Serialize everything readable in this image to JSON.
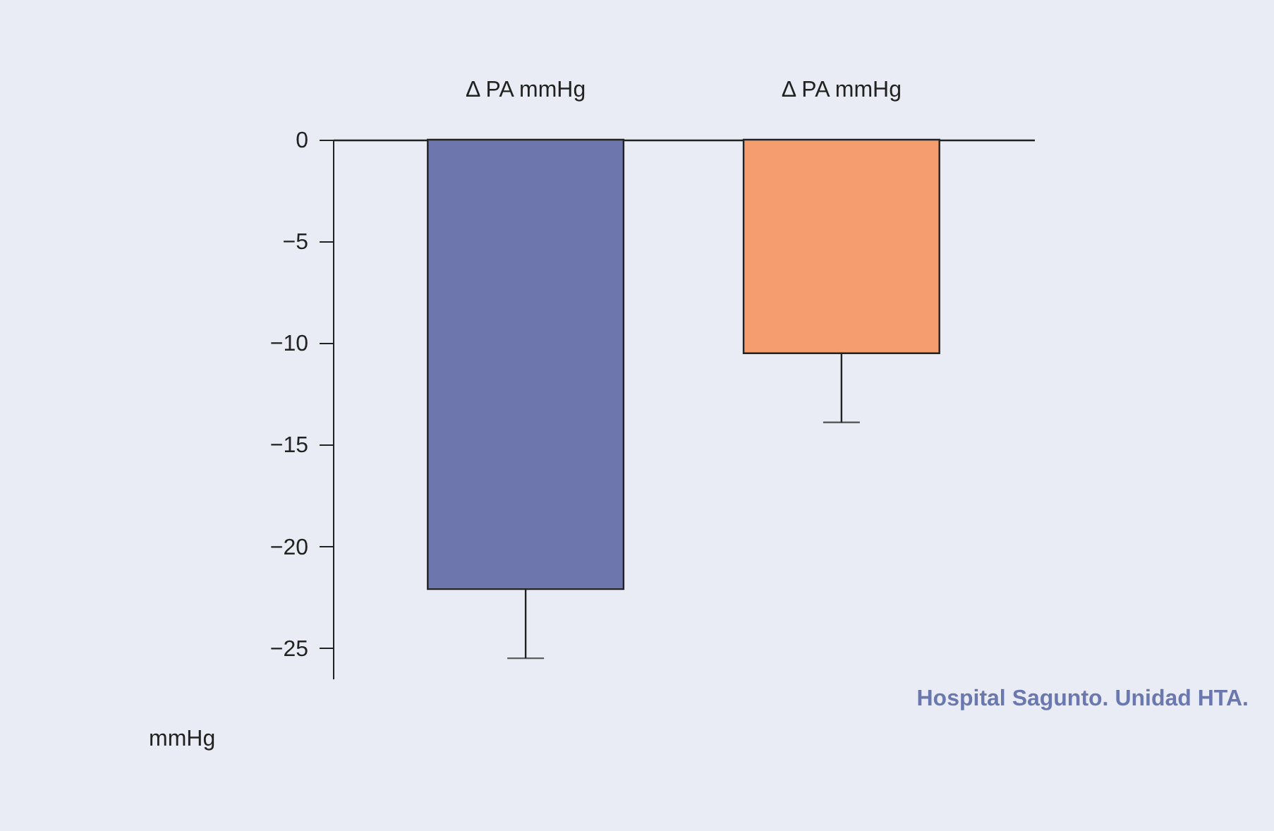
{
  "chart_data": {
    "type": "bar",
    "categories": [
      "Δ PA mmHg",
      "Δ PA mmHg"
    ],
    "values": [
      -22.1,
      -10.5
    ],
    "colors": [
      "#6d77ad",
      "#f59d6e"
    ],
    "errors": [
      3.4,
      3.4
    ],
    "ylim": [
      -26.5,
      0
    ],
    "yticks": [
      0,
      -5,
      -10,
      -15,
      -20,
      -25
    ],
    "ylabel": "mmHg",
    "grid": false,
    "annotations": [
      "Hospital Sagunto. Unidad HTA."
    ]
  }
}
